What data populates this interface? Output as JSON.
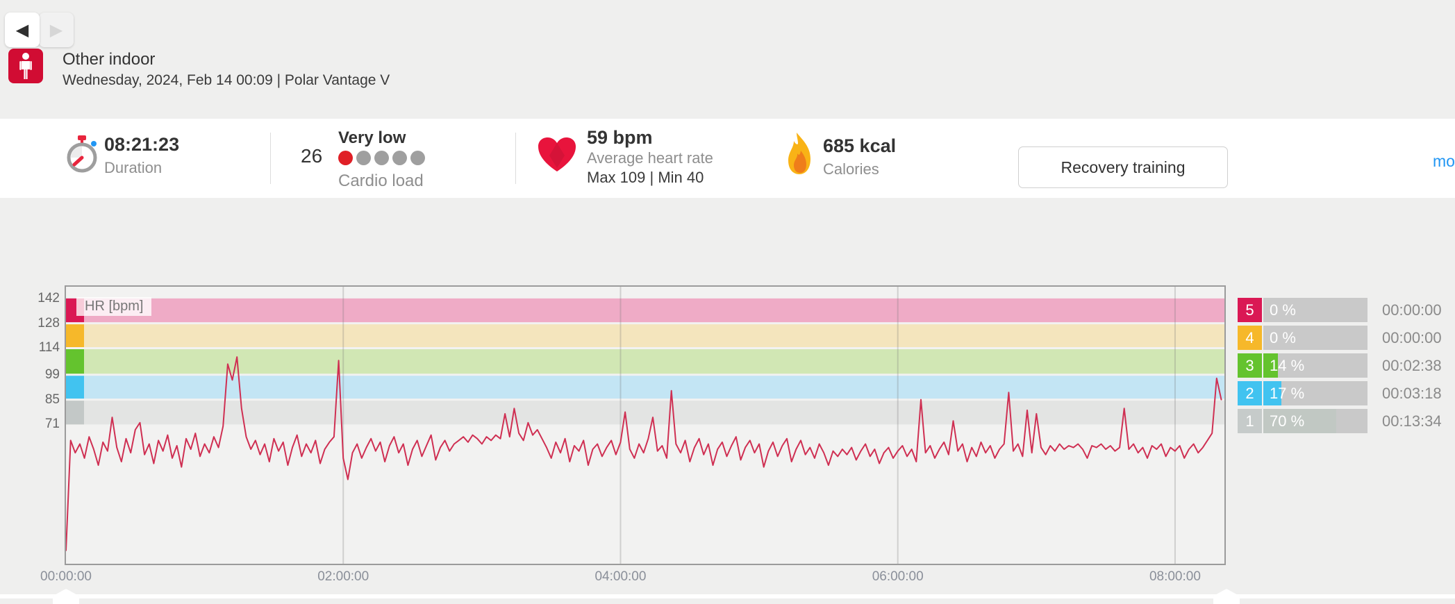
{
  "header": {
    "icons": {
      "back": "◀",
      "forward": "▶"
    },
    "sport": "Other indoor",
    "datetime_device": "Wednesday, 2024, Feb 14 00:09  |  Polar Vantage V"
  },
  "stats": {
    "duration": {
      "value": "08:21:23",
      "label": "Duration"
    },
    "cardio_load": {
      "value": "26",
      "rating": "Very low",
      "label": "Cardio load",
      "dots_total": 5,
      "dots_filled": 1,
      "dot_filled_color": "#e01f26",
      "dot_empty_color": "#9f9f9f"
    },
    "heart_rate": {
      "value": "59 bpm",
      "label": "Average heart rate",
      "minmax": "Max 109  |  Min 40"
    },
    "calories": {
      "value": "685 kcal",
      "label": "Calories"
    },
    "recovery_button": "Recovery training",
    "more_link": "more"
  },
  "chart_data": {
    "type": "line",
    "title": "HR [bpm]",
    "hr_label": "HR [bpm]",
    "line_color": "#cf2f52",
    "x_max_hours": 8.356,
    "y_top": 148.6,
    "y_bottom": -7.5,
    "grid": true,
    "x_ticks": [
      {
        "t": 0,
        "label": "00:00:00"
      },
      {
        "t": 2,
        "label": "02:00:00"
      },
      {
        "t": 4,
        "label": "04:00:00"
      },
      {
        "t": 6,
        "label": "06:00:00"
      },
      {
        "t": 8,
        "label": "08:00:00"
      }
    ],
    "y_ticks": [
      {
        "bpm": 142,
        "label": "142"
      },
      {
        "bpm": 128,
        "label": "128"
      },
      {
        "bpm": 114,
        "label": "114"
      },
      {
        "bpm": 99,
        "label": "99"
      },
      {
        "bpm": 85,
        "label": "85"
      },
      {
        "bpm": 71,
        "label": "71"
      }
    ],
    "zones": [
      {
        "zone": 5,
        "lo": 128,
        "hi": 142,
        "band": "#efabc6",
        "strip": "#da1854"
      },
      {
        "zone": 4,
        "lo": 114,
        "hi": 128,
        "band": "#f4e5bd",
        "strip": "#f6b82a"
      },
      {
        "zone": 3,
        "lo": 99,
        "hi": 114,
        "band": "#d1e7b4",
        "strip": "#64c32e"
      },
      {
        "zone": 2,
        "lo": 85,
        "hi": 99,
        "band": "#c3e5f4",
        "strip": "#41c3f0"
      },
      {
        "zone": 1,
        "lo": 71,
        "hi": 85,
        "band": "#e3e4e3",
        "strip": "#c3c8c7"
      }
    ],
    "series": {
      "name": "HR",
      "unit": "bpm",
      "dt_seconds": 120,
      "values": [
        0,
        62,
        55,
        60,
        52,
        64,
        57,
        48,
        61,
        56,
        75,
        58,
        50,
        63,
        55,
        68,
        72,
        54,
        60,
        49,
        62,
        56,
        65,
        52,
        59,
        47,
        63,
        57,
        66,
        53,
        60,
        55,
        64,
        58,
        70,
        105,
        96,
        109,
        80,
        64,
        57,
        62,
        54,
        60,
        50,
        63,
        56,
        61,
        48,
        58,
        65,
        53,
        60,
        55,
        62,
        49,
        57,
        61,
        64,
        107,
        52,
        40,
        55,
        60,
        52,
        58,
        63,
        56,
        61,
        50,
        59,
        64,
        55,
        60,
        48,
        57,
        62,
        53,
        59,
        65,
        51,
        58,
        62,
        56,
        60,
        62,
        64,
        61,
        65,
        63,
        60,
        64,
        62,
        65,
        63,
        77,
        64,
        80,
        66,
        62,
        72,
        65,
        68,
        63,
        58,
        52,
        61,
        55,
        63,
        50,
        59,
        56,
        62,
        48,
        57,
        60,
        53,
        58,
        62,
        54,
        61,
        78,
        57,
        52,
        60,
        55,
        63,
        75,
        56,
        59,
        52,
        90,
        60,
        55,
        62,
        50,
        58,
        63,
        54,
        60,
        48,
        57,
        61,
        53,
        59,
        64,
        51,
        58,
        62,
        55,
        60,
        47,
        56,
        61,
        53,
        59,
        63,
        50,
        57,
        62,
        54,
        58,
        52,
        60,
        55,
        48,
        56,
        53,
        57,
        54,
        58,
        51,
        56,
        60,
        53,
        57,
        49,
        55,
        58,
        52,
        56,
        59,
        53,
        57,
        50,
        85,
        55,
        59,
        52,
        57,
        61,
        54,
        73,
        56,
        60,
        50,
        58,
        53,
        61,
        55,
        59,
        52,
        57,
        60,
        89,
        56,
        60,
        53,
        79,
        55,
        77,
        58,
        54,
        59,
        56,
        60,
        57,
        59,
        58,
        60,
        57,
        52,
        59,
        58,
        60,
        57,
        59,
        56,
        58,
        80,
        57,
        60,
        55,
        58,
        52,
        59,
        57,
        60,
        53,
        58,
        56,
        59,
        52,
        57,
        60,
        55,
        58,
        62,
        66,
        97,
        85
      ]
    }
  },
  "zone_table": {
    "rows": [
      {
        "zone": "5",
        "percent": "0 %",
        "time": "00:00:00",
        "color": "#da1854",
        "fill_color": "#da1854",
        "fill_pct": 0,
        "text_on_square": "#fff"
      },
      {
        "zone": "4",
        "percent": "0 %",
        "time": "00:00:00",
        "color": "#f6b82a",
        "fill_color": "#f6b82a",
        "fill_pct": 0,
        "text_on_square": "#fff"
      },
      {
        "zone": "3",
        "percent": "14 %",
        "time": "00:02:38",
        "color": "#64c32e",
        "fill_color": "#64c32e",
        "fill_pct": 14,
        "text_on_square": "#fff"
      },
      {
        "zone": "2",
        "percent": "17 %",
        "time": "00:03:18",
        "color": "#41c3f0",
        "fill_color": "#41c3f0",
        "fill_pct": 17,
        "text_on_square": "#fff"
      },
      {
        "zone": "1",
        "percent": "70 %",
        "time": "00:13:34",
        "color": "#c6cbca",
        "fill_color": "#c1c8c3",
        "fill_pct": 70,
        "text_on_square": "#fff"
      }
    ]
  }
}
